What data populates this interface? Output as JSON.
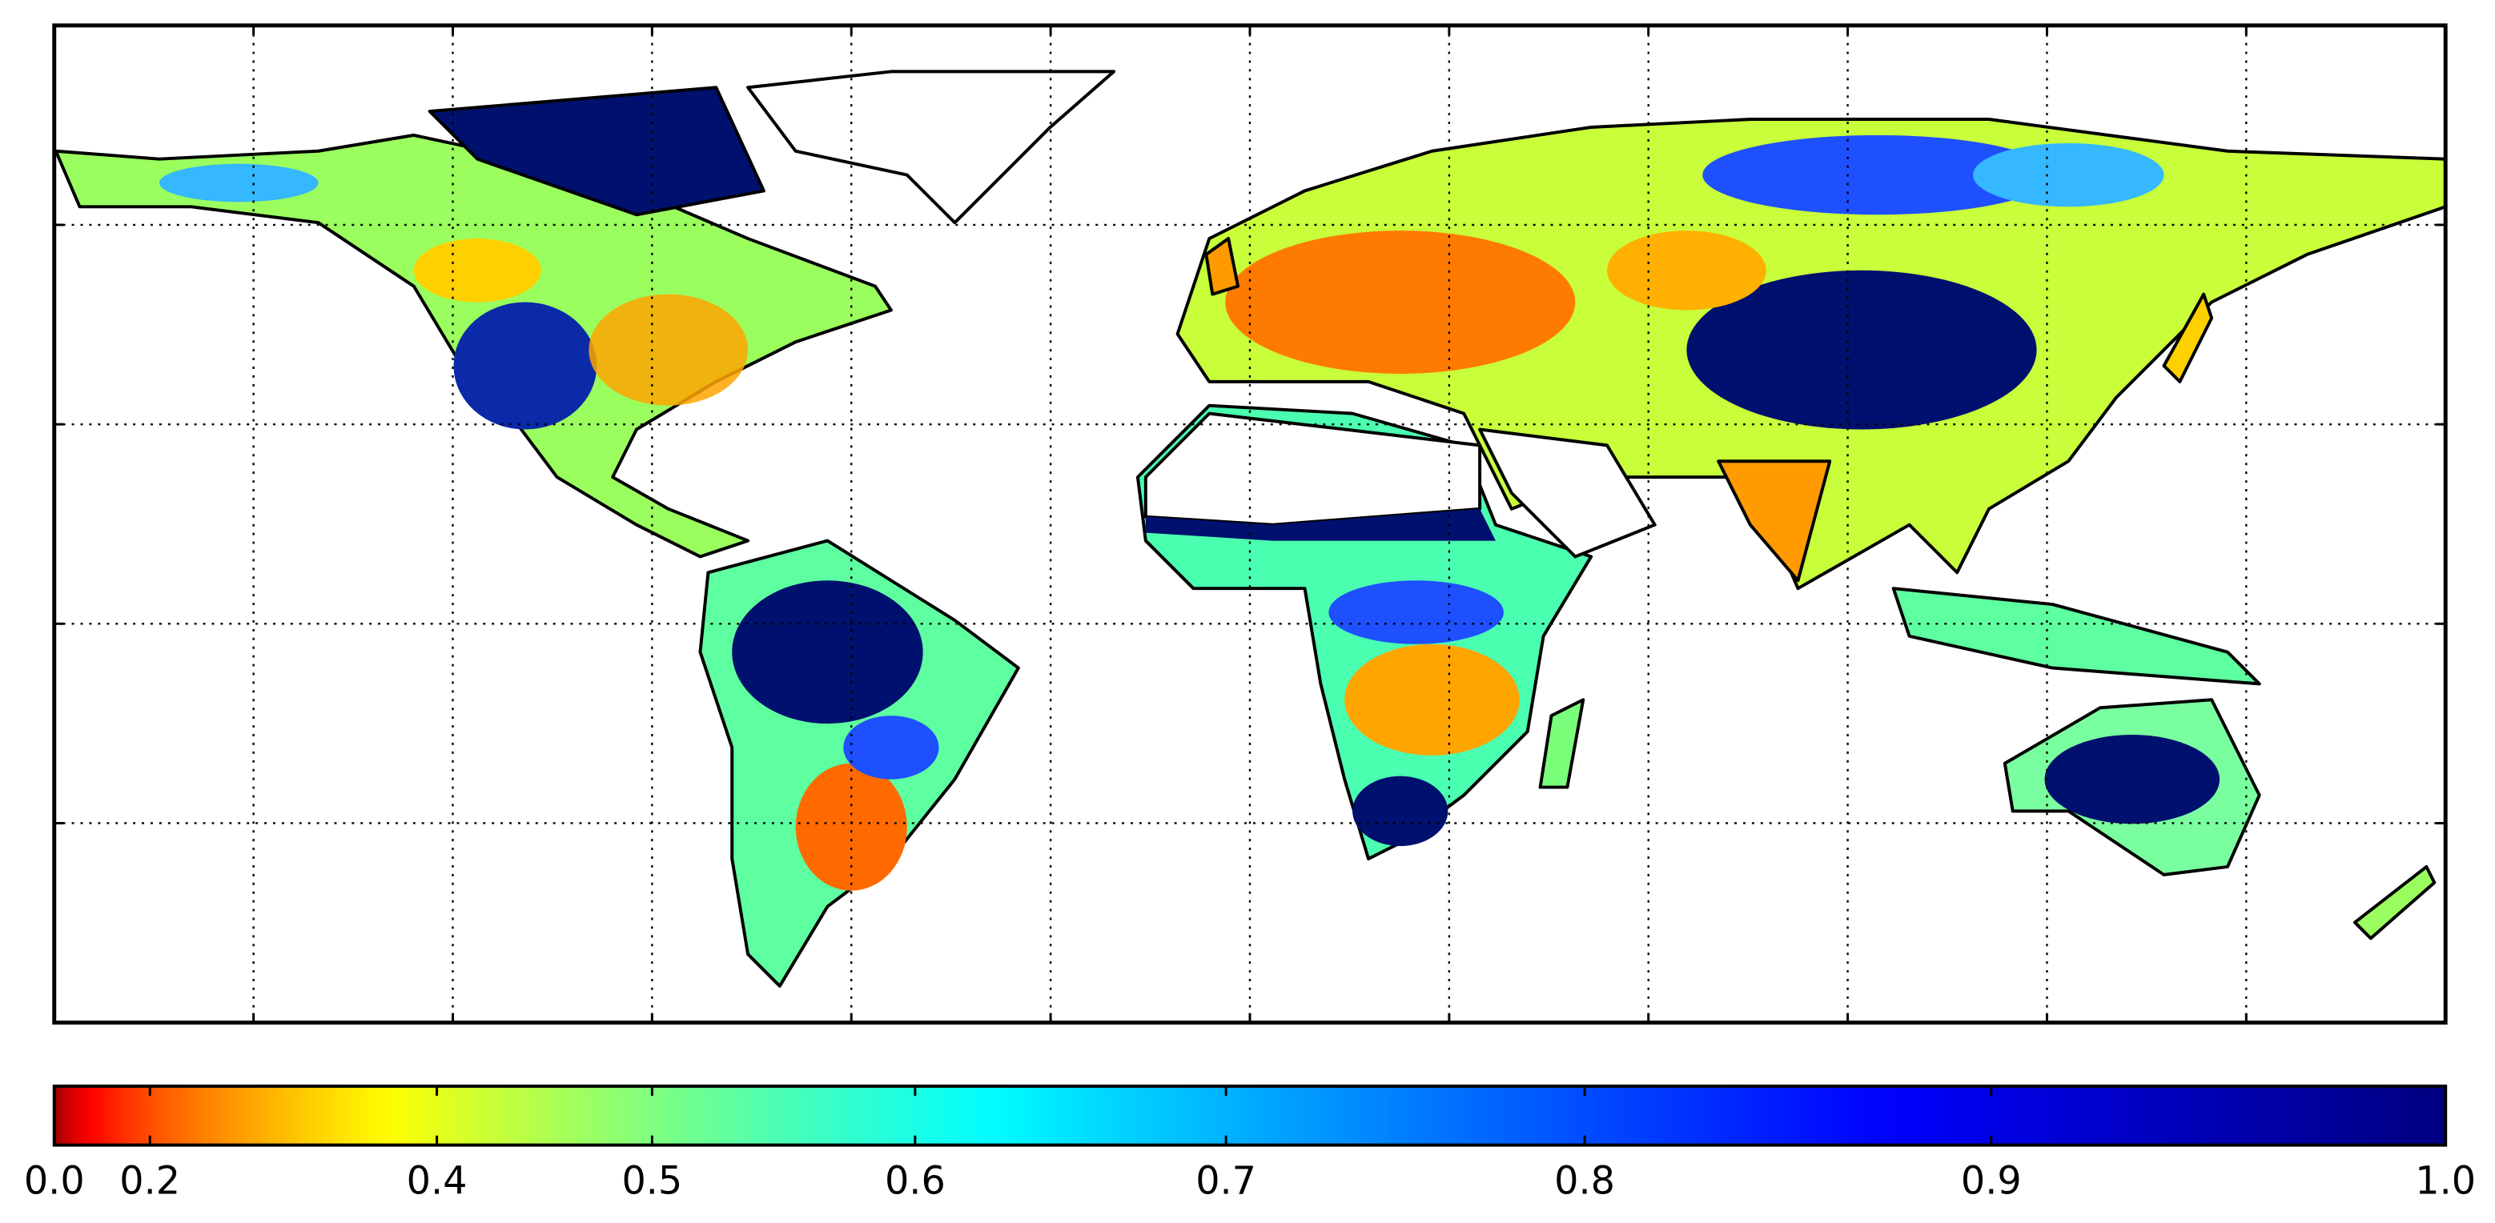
{
  "chart_data": {
    "type": "map",
    "xlim": [
      -180,
      180
    ],
    "xticks": [
      -150,
      -120,
      -90,
      -60,
      -30,
      0,
      30,
      60,
      90,
      120,
      150
    ],
    "ylim": [
      -60,
      90
    ],
    "yticks": [
      -30,
      0,
      30,
      60
    ],
    "grid": true,
    "colorbar": {
      "colormap": "jet_r",
      "norm": "power",
      "gamma": 2,
      "lim": [
        0,
        1
      ],
      "ticks": [
        {
          "value": 0,
          "label": "0.0"
        },
        {
          "value": 0.2,
          "label": "0.2"
        },
        {
          "value": 0.4,
          "label": "0.4"
        },
        {
          "value": 0.5,
          "label": "0.5"
        },
        {
          "value": 0.6,
          "label": "0.6"
        },
        {
          "value": 0.7,
          "label": "0.7"
        },
        {
          "value": 0.8,
          "label": "0.8"
        },
        {
          "value": 0.9,
          "label": "0.9"
        },
        {
          "value": 1,
          "label": "1.0"
        }
      ]
    }
  }
}
